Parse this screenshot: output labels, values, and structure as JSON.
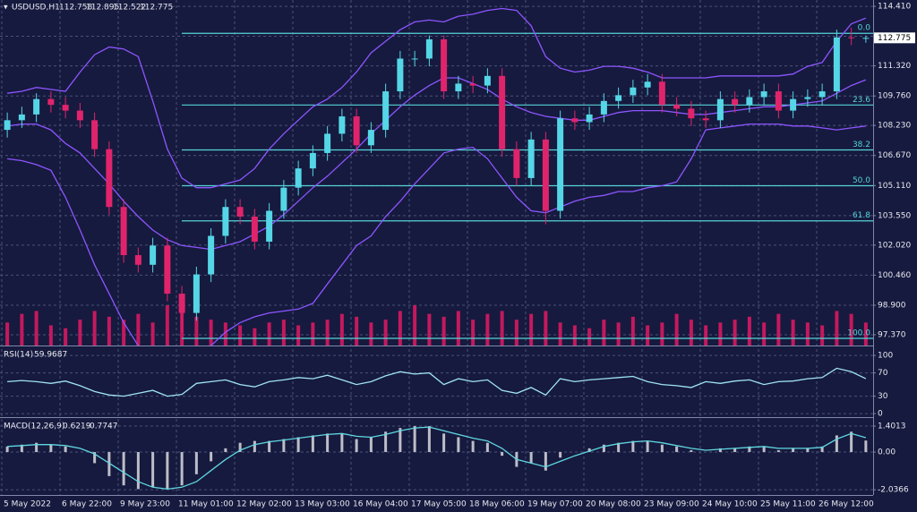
{
  "chart_data": [
    {
      "type": "candlestick",
      "title": "USDUSD,H1",
      "categories": [
        "5 May 2022",
        null,
        null,
        null,
        "6 May 22:00",
        null,
        null,
        null,
        "9 May 23:00",
        null,
        null,
        null,
        "11 May 01:00",
        null,
        null,
        null,
        "12 May 02:00",
        null,
        null,
        null,
        "13 May 03:00",
        null,
        null,
        null,
        "16 May 04:00",
        null,
        null,
        null,
        "17 May 05:00",
        null,
        null,
        null,
        "18 May 06:00",
        null,
        null,
        null,
        "19 May 07:00",
        null,
        null,
        null,
        "20 May 08:00",
        null,
        null,
        null,
        "23 May 09:00",
        null,
        null,
        null,
        "24 May 10:00",
        null,
        null,
        null,
        "25 May 11:00",
        null,
        null,
        null,
        "26 May 12:00",
        null,
        null,
        null
      ],
      "open": [
        108.0,
        108.5,
        108.8,
        109.6,
        109.3,
        109.0,
        108.5,
        107.0,
        104.0,
        101.5,
        101.0,
        102.0,
        99.5,
        98.5,
        100.5,
        102.5,
        104.0,
        103.5,
        102.2,
        103.8,
        105.0,
        106.0,
        106.8,
        107.8,
        108.7,
        107.2,
        108.0,
        110.0,
        111.7,
        111.7,
        112.7,
        110.0,
        110.4,
        110.3,
        110.8,
        107.0,
        105.5,
        107.5,
        103.8,
        108.6,
        108.4,
        108.8,
        109.5,
        109.8,
        110.2,
        110.5,
        109.3,
        109.1,
        108.6,
        108.5,
        109.6,
        109.3,
        109.7,
        110.0,
        109.0,
        109.6,
        109.7,
        110.0,
        112.8,
        112.758
      ],
      "high": [
        108.9,
        109.2,
        109.9,
        110.0,
        109.7,
        109.4,
        108.9,
        107.4,
        104.4,
        101.9,
        102.4,
        102.4,
        99.9,
        100.9,
        102.9,
        104.4,
        104.4,
        103.9,
        104.2,
        105.4,
        106.4,
        107.2,
        108.2,
        109.1,
        109.1,
        108.4,
        110.4,
        112.1,
        112.1,
        112.9,
        112.9,
        110.8,
        110.8,
        111.2,
        111.2,
        107.4,
        107.9,
        107.9,
        109.0,
        109.0,
        109.2,
        109.9,
        110.2,
        110.6,
        110.9,
        110.9,
        109.7,
        109.5,
        109.0,
        110.0,
        110.0,
        110.1,
        110.4,
        110.4,
        110.0,
        110.1,
        110.4,
        113.2,
        113.3,
        112.895
      ],
      "low": [
        107.6,
        108.1,
        108.4,
        108.9,
        108.6,
        108.1,
        106.6,
        103.6,
        101.1,
        100.6,
        100.6,
        99.1,
        97.5,
        98.1,
        100.1,
        102.1,
        103.1,
        101.8,
        101.8,
        103.4,
        104.6,
        105.6,
        106.4,
        107.4,
        106.8,
        106.8,
        107.6,
        109.6,
        111.3,
        111.3,
        109.6,
        109.6,
        109.9,
        109.9,
        106.6,
        105.1,
        105.1,
        103.1,
        103.4,
        108.0,
        108.0,
        108.4,
        109.1,
        109.4,
        109.8,
        108.9,
        108.7,
        108.2,
        108.1,
        108.1,
        108.9,
        108.9,
        109.3,
        108.6,
        108.6,
        109.2,
        109.3,
        109.6,
        112.4,
        112.522
      ],
      "close": [
        108.5,
        108.8,
        109.6,
        109.3,
        109.0,
        108.5,
        107.0,
        104.0,
        101.5,
        101.0,
        102.0,
        99.5,
        98.5,
        100.5,
        102.5,
        104.0,
        103.5,
        102.2,
        103.8,
        105.0,
        106.0,
        106.8,
        107.8,
        108.7,
        107.2,
        108.0,
        110.0,
        111.7,
        111.7,
        112.7,
        110.0,
        110.4,
        110.3,
        110.8,
        107.0,
        105.5,
        107.5,
        103.8,
        108.6,
        108.4,
        108.8,
        109.5,
        109.8,
        110.2,
        110.5,
        109.3,
        109.1,
        108.6,
        108.5,
        109.6,
        109.3,
        109.7,
        110.0,
        109.0,
        109.6,
        109.7,
        110.0,
        112.8,
        112.758,
        112.775
      ],
      "colors": {
        "up": "#55d6e6",
        "down": "#e0246c"
      },
      "bands": {
        "color": "#8d55ff",
        "upper": [
          109.9,
          110.0,
          110.2,
          110.1,
          110.0,
          111.0,
          111.9,
          112.3,
          112.2,
          111.8,
          109.5,
          107.0,
          105.5,
          105.0,
          105.0,
          105.2,
          105.4,
          106.0,
          107.0,
          107.8,
          108.5,
          109.2,
          109.6,
          110.2,
          111.0,
          112.0,
          112.6,
          113.2,
          113.6,
          113.7,
          113.6,
          113.9,
          114.0,
          114.2,
          114.3,
          114.2,
          113.4,
          111.8,
          111.2,
          111.0,
          111.1,
          111.3,
          111.3,
          111.2,
          111.0,
          110.7,
          110.7,
          110.7,
          110.7,
          110.8,
          110.8,
          110.8,
          110.8,
          110.8,
          110.9,
          111.3,
          111.5,
          112.6,
          113.5,
          113.8
        ],
        "middle": [
          108.2,
          108.3,
          108.3,
          108.0,
          107.3,
          106.8,
          106.0,
          105.2,
          104.3,
          103.5,
          102.8,
          102.3,
          102.0,
          101.9,
          101.8,
          102.0,
          102.2,
          102.6,
          103.0,
          103.6,
          104.3,
          105.0,
          105.6,
          106.3,
          107.0,
          107.8,
          108.5,
          109.2,
          109.8,
          110.3,
          110.7,
          110.7,
          110.4,
          110.1,
          109.6,
          109.2,
          108.9,
          108.7,
          108.6,
          108.5,
          108.5,
          108.7,
          108.9,
          109.0,
          109.0,
          109.0,
          108.9,
          108.8,
          108.8,
          108.9,
          109.0,
          109.1,
          109.2,
          109.2,
          109.3,
          109.4,
          109.5,
          109.9,
          110.3,
          110.6
        ],
        "lower": [
          106.5,
          106.4,
          106.2,
          105.9,
          104.5,
          102.8,
          101.0,
          99.5,
          98.0,
          96.8,
          96.0,
          95.5,
          95.5,
          96.0,
          96.8,
          97.5,
          98.0,
          98.3,
          98.5,
          98.6,
          98.7,
          99.0,
          100.0,
          101.0,
          102.0,
          102.5,
          103.5,
          104.3,
          105.2,
          106.0,
          106.8,
          107.0,
          107.1,
          106.5,
          105.5,
          104.5,
          103.8,
          103.7,
          104.0,
          104.3,
          104.5,
          104.6,
          104.8,
          104.8,
          105.0,
          105.1,
          105.3,
          106.5,
          108.0,
          108.1,
          108.2,
          108.3,
          108.3,
          108.3,
          108.2,
          108.2,
          108.1,
          108.0,
          108.1,
          108.2
        ]
      },
      "volume": [
        40,
        55,
        60,
        35,
        30,
        45,
        60,
        50,
        45,
        55,
        40,
        70,
        60,
        50,
        45,
        40,
        35,
        30,
        40,
        45,
        35,
        40,
        45,
        55,
        50,
        40,
        45,
        60,
        70,
        55,
        50,
        60,
        45,
        55,
        60,
        45,
        55,
        60,
        40,
        35,
        30,
        45,
        40,
        50,
        35,
        40,
        55,
        45,
        35,
        40,
        45,
        50,
        40,
        55,
        45,
        40,
        35,
        60,
        55,
        40
      ],
      "volume_color": "#c4195e",
      "fib_color": "#55d3d8",
      "fib_levels": [
        {
          "label": "0.0",
          "value": 113.01
        },
        {
          "label": "23.6",
          "value": 109.29
        },
        {
          "label": "38.2",
          "value": 106.96
        },
        {
          "label": "50.0",
          "value": 105.1
        },
        {
          "label": "61.8",
          "value": 103.28
        },
        {
          "label": "100.0",
          "value": 97.18
        }
      ],
      "ylim": [
        96.81,
        114.74
      ],
      "yticks": [
        {
          "value": 114.41,
          "label": "114.410"
        },
        {
          "value": 112.86,
          "label": "112.860"
        },
        {
          "value": 111.32,
          "label": "111.320"
        },
        {
          "value": 109.76,
          "label": "109.760"
        },
        {
          "value": 108.23,
          "label": "108.230"
        },
        {
          "value": 106.67,
          "label": "106.670"
        },
        {
          "value": 105.11,
          "label": "105.110"
        },
        {
          "value": 103.55,
          "label": "103.550"
        },
        {
          "value": 102.02,
          "label": "102.020"
        },
        {
          "value": 100.46,
          "label": "100.460"
        },
        {
          "value": 98.9,
          "label": "98.900"
        },
        {
          "value": 97.37,
          "label": "97.370"
        }
      ],
      "grid": true
    },
    {
      "type": "line",
      "title": "RSI(14)",
      "color": "#9fe3f2",
      "values": [
        55,
        57,
        55,
        52,
        56,
        48,
        38,
        32,
        30,
        35,
        40,
        30,
        33,
        52,
        55,
        58,
        50,
        46,
        55,
        58,
        62,
        60,
        66,
        58,
        50,
        55,
        65,
        72,
        68,
        70,
        50,
        60,
        55,
        58,
        40,
        35,
        45,
        32,
        60,
        55,
        58,
        60,
        62,
        64,
        55,
        50,
        48,
        45,
        55,
        52,
        56,
        58,
        50,
        55,
        56,
        60,
        62,
        78,
        72,
        59.9687
      ],
      "ylim": [
        -6,
        114
      ],
      "yticks": [
        100,
        70,
        30,
        0
      ],
      "grid": true
    },
    {
      "type": "macd",
      "title": "MACD(12,26,9)",
      "bar_color": "#bdbdc8",
      "line_color": "#5fd7e0",
      "histogram": [
        0.3,
        0.4,
        0.5,
        0.4,
        0.3,
        0.0,
        -0.6,
        -1.3,
        -1.8,
        -2.0,
        -1.9,
        -2.0,
        -1.8,
        -1.2,
        -0.5,
        0.2,
        0.5,
        0.6,
        0.6,
        0.7,
        0.8,
        0.9,
        1.0,
        1.0,
        0.7,
        0.8,
        1.1,
        1.3,
        1.4,
        1.4,
        1.0,
        0.8,
        0.6,
        0.5,
        -0.2,
        -0.8,
        -0.6,
        -1.0,
        -0.3,
        0.0,
        0.2,
        0.4,
        0.5,
        0.6,
        0.6,
        0.4,
        0.3,
        0.1,
        0.0,
        0.2,
        0.2,
        0.3,
        0.3,
        0.1,
        0.2,
        0.2,
        0.3,
        0.9,
        1.1,
        0.6219
      ],
      "signal": [
        0.3,
        0.35,
        0.4,
        0.4,
        0.35,
        0.2,
        -0.1,
        -0.6,
        -1.1,
        -1.6,
        -1.9,
        -2.0,
        -1.9,
        -1.6,
        -1.0,
        -0.4,
        0.1,
        0.4,
        0.55,
        0.65,
        0.75,
        0.85,
        0.95,
        1.0,
        0.85,
        0.8,
        0.95,
        1.15,
        1.3,
        1.35,
        1.15,
        0.95,
        0.75,
        0.6,
        0.2,
        -0.4,
        -0.6,
        -0.8,
        -0.5,
        -0.2,
        0.05,
        0.3,
        0.45,
        0.55,
        0.6,
        0.5,
        0.35,
        0.2,
        0.1,
        0.15,
        0.2,
        0.25,
        0.3,
        0.2,
        0.2,
        0.2,
        0.25,
        0.7,
        1.0,
        0.7747
      ],
      "ylim": [
        -2.32,
        1.79
      ],
      "yticks": [
        1.4013,
        {
          "value": 0,
          "label": "0.00"
        },
        -2.0366
      ],
      "grid": true
    }
  ]
}
